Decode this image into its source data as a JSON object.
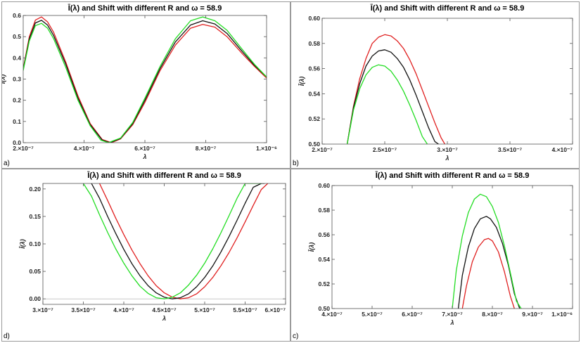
{
  "charts": [
    {
      "panel_id": "pa",
      "label": "a)",
      "chart_data": {
        "type": "line",
        "title": "Ī(λ) and Shift with different R and ω = 58.9",
        "xlabel": "λ",
        "ylabel": "Ī(λ)",
        "xlim": [
          2e-07,
          1e-06
        ],
        "ylim": [
          0,
          0.6
        ],
        "x_ticks": [
          {
            "v": 2e-07,
            "label": "2.×10⁻⁷"
          },
          {
            "v": 4e-07,
            "label": "4.×10⁻⁷"
          },
          {
            "v": 6e-07,
            "label": "6.×10⁻⁷"
          },
          {
            "v": 8e-07,
            "label": "8.×10⁻⁷"
          },
          {
            "v": 1e-06,
            "label": "1.×10⁻⁶"
          }
        ],
        "y_ticks": [
          {
            "v": 0.0,
            "label": "0.0"
          },
          {
            "v": 0.1,
            "label": "0.1"
          },
          {
            "v": 0.2,
            "label": "0.2"
          },
          {
            "v": 0.3,
            "label": "0.3"
          },
          {
            "v": 0.4,
            "label": "0.4"
          },
          {
            "v": 0.5,
            "label": "0.5"
          },
          {
            "v": 0.6,
            "label": "0.6"
          }
        ],
        "series": [
          {
            "name": "red",
            "color": "#e02020",
            "x": [
              2e-07,
              2.2e-07,
              2.4e-07,
              2.6e-07,
              2.8e-07,
              3e-07,
              3.4e-07,
              3.8e-07,
              4.2e-07,
              4.6e-07,
              4.9e-07,
              5.2e-07,
              5.6e-07,
              6e-07,
              6.5e-07,
              7e-07,
              7.5e-07,
              7.9e-07,
              8.3e-07,
              8.7e-07,
              9.2e-07,
              9.6e-07,
              1e-06
            ],
            "y": [
              0.35,
              0.5,
              0.578,
              0.593,
              0.57,
              0.52,
              0.38,
              0.22,
              0.09,
              0.015,
              0.0,
              0.018,
              0.085,
              0.19,
              0.34,
              0.46,
              0.54,
              0.558,
              0.545,
              0.5,
              0.42,
              0.36,
              0.305
            ]
          },
          {
            "name": "black",
            "color": "#111111",
            "x": [
              2e-07,
              2.2e-07,
              2.4e-07,
              2.6e-07,
              2.8e-07,
              3e-07,
              3.4e-07,
              3.8e-07,
              4.2e-07,
              4.6e-07,
              4.85e-07,
              5.2e-07,
              5.6e-07,
              6e-07,
              6.5e-07,
              7e-07,
              7.5e-07,
              7.9e-07,
              8.3e-07,
              8.7e-07,
              9.2e-07,
              9.6e-07,
              1e-06
            ],
            "y": [
              0.345,
              0.49,
              0.565,
              0.577,
              0.555,
              0.505,
              0.37,
              0.21,
              0.085,
              0.012,
              0.0,
              0.02,
              0.09,
              0.2,
              0.35,
              0.475,
              0.555,
              0.575,
              0.56,
              0.515,
              0.43,
              0.365,
              0.31
            ]
          },
          {
            "name": "green",
            "color": "#22dd22",
            "x": [
              2e-07,
              2.2e-07,
              2.4e-07,
              2.6e-07,
              2.8e-07,
              3e-07,
              3.4e-07,
              3.8e-07,
              4.2e-07,
              4.55e-07,
              4.8e-07,
              5.2e-07,
              5.6e-07,
              6e-07,
              6.5e-07,
              7e-07,
              7.5e-07,
              7.9e-07,
              8.3e-07,
              8.7e-07,
              9.2e-07,
              9.6e-07,
              1e-06
            ],
            "y": [
              0.34,
              0.48,
              0.552,
              0.563,
              0.54,
              0.49,
              0.355,
              0.2,
              0.08,
              0.012,
              0.0,
              0.022,
              0.095,
              0.21,
              0.36,
              0.49,
              0.575,
              0.593,
              0.575,
              0.53,
              0.44,
              0.37,
              0.31
            ]
          }
        ]
      }
    },
    {
      "panel_id": "pb",
      "label": "b)",
      "chart_data": {
        "type": "line",
        "title": "Ī(λ) and Shift with different R and ω = 58.9",
        "xlabel": "λ",
        "ylabel": "Ī(λ)",
        "xlim": [
          2e-07,
          4e-07
        ],
        "ylim": [
          0.5,
          0.6
        ],
        "x_ticks": [
          {
            "v": 2e-07,
            "label": "2.×10⁻⁷"
          },
          {
            "v": 2.5e-07,
            "label": "2.5×10⁻⁷"
          },
          {
            "v": 3e-07,
            "label": "3.×10⁻⁷"
          },
          {
            "v": 3.5e-07,
            "label": "3.5×10⁻⁷"
          },
          {
            "v": 4e-07,
            "label": "4.×10⁻⁷"
          }
        ],
        "y_ticks": [
          {
            "v": 0.5,
            "label": "0.50"
          },
          {
            "v": 0.52,
            "label": "0.52"
          },
          {
            "v": 0.54,
            "label": "0.54"
          },
          {
            "v": 0.56,
            "label": "0.56"
          },
          {
            "v": 0.58,
            "label": "0.58"
          },
          {
            "v": 0.6,
            "label": "0.60"
          }
        ],
        "series": [
          {
            "name": "red",
            "color": "#e02020",
            "x": [
              2.2e-07,
              2.25e-07,
              2.3e-07,
              2.35e-07,
              2.4e-07,
              2.45e-07,
              2.5e-07,
              2.55e-07,
              2.6e-07,
              2.65e-07,
              2.7e-07,
              2.75e-07,
              2.8e-07,
              2.85e-07,
              2.9e-07,
              2.95e-07,
              2.98e-07
            ],
            "y": [
              0.5,
              0.53,
              0.552,
              0.568,
              0.58,
              0.585,
              0.587,
              0.586,
              0.582,
              0.576,
              0.567,
              0.556,
              0.543,
              0.53,
              0.517,
              0.505,
              0.5
            ]
          },
          {
            "name": "black",
            "color": "#111111",
            "x": [
              2.2e-07,
              2.25e-07,
              2.3e-07,
              2.35e-07,
              2.4e-07,
              2.45e-07,
              2.5e-07,
              2.55e-07,
              2.6e-07,
              2.65e-07,
              2.7e-07,
              2.75e-07,
              2.8e-07,
              2.85e-07,
              2.9e-07,
              2.93e-07
            ],
            "y": [
              0.5,
              0.529,
              0.548,
              0.562,
              0.57,
              0.574,
              0.575,
              0.573,
              0.568,
              0.561,
              0.551,
              0.539,
              0.526,
              0.513,
              0.502,
              0.5
            ]
          },
          {
            "name": "green",
            "color": "#22dd22",
            "x": [
              2.2e-07,
              2.25e-07,
              2.3e-07,
              2.35e-07,
              2.4e-07,
              2.45e-07,
              2.5e-07,
              2.55e-07,
              2.6e-07,
              2.65e-07,
              2.7e-07,
              2.75e-07,
              2.8e-07,
              2.84e-07
            ],
            "y": [
              0.5,
              0.527,
              0.544,
              0.555,
              0.561,
              0.563,
              0.562,
              0.558,
              0.551,
              0.542,
              0.531,
              0.519,
              0.506,
              0.5
            ]
          }
        ]
      }
    },
    {
      "panel_id": "pd",
      "label": "d)",
      "chart_data": {
        "type": "line",
        "title": "Ī(λ) and Shift with different R and ω = 58.9",
        "xlabel": "λ",
        "ylabel": "Ī(λ)",
        "xlim": [
          3e-07,
          6e-07
        ],
        "ylim": [
          -0.01,
          0.21
        ],
        "x_ticks": [
          {
            "v": 3e-07,
            "label": "3.×10⁻⁷"
          },
          {
            "v": 3.5e-07,
            "label": "3.5×10⁻⁷"
          },
          {
            "v": 4e-07,
            "label": "4.×10⁻⁷"
          },
          {
            "v": 4.5e-07,
            "label": "4.5×10⁻⁷"
          },
          {
            "v": 5e-07,
            "label": "5.×10⁻⁷"
          },
          {
            "v": 5.5e-07,
            "label": "5.5×10⁻⁷"
          },
          {
            "v": 6e-07,
            "label": "6.×10⁻⁷"
          }
        ],
        "y_ticks": [
          {
            "v": 0.0,
            "label": "0.00"
          },
          {
            "v": 0.05,
            "label": "0.05"
          },
          {
            "v": 0.1,
            "label": "0.10"
          },
          {
            "v": 0.15,
            "label": "0.15"
          },
          {
            "v": 0.2,
            "label": "0.20"
          }
        ],
        "series": [
          {
            "name": "red",
            "color": "#e02020",
            "x": [
              3.7e-07,
              3.8e-07,
              3.9e-07,
              4e-07,
              4.1e-07,
              4.2e-07,
              4.3e-07,
              4.4e-07,
              4.5e-07,
              4.6e-07,
              4.7e-07,
              4.8e-07,
              4.9e-07,
              5e-07,
              5.1e-07,
              5.2e-07,
              5.3e-07,
              5.4e-07,
              5.5e-07,
              5.6e-07,
              5.7e-07,
              5.78e-07
            ],
            "y": [
              0.21,
              0.179,
              0.147,
              0.117,
              0.089,
              0.064,
              0.042,
              0.024,
              0.011,
              0.003,
              0.0,
              0.002,
              0.009,
              0.022,
              0.039,
              0.06,
              0.084,
              0.111,
              0.14,
              0.17,
              0.199,
              0.21
            ]
          },
          {
            "name": "black",
            "color": "#111111",
            "x": [
              3.6e-07,
              3.7e-07,
              3.8e-07,
              3.9e-07,
              4e-07,
              4.1e-07,
              4.2e-07,
              4.3e-07,
              4.4e-07,
              4.5e-07,
              4.6e-07,
              4.7e-07,
              4.8e-07,
              4.9e-07,
              5e-07,
              5.1e-07,
              5.2e-07,
              5.3e-07,
              5.4e-07,
              5.5e-07,
              5.6e-07,
              5.7e-07,
              5.74e-07
            ],
            "y": [
              0.21,
              0.183,
              0.15,
              0.119,
              0.09,
              0.064,
              0.042,
              0.024,
              0.011,
              0.003,
              0.0,
              0.002,
              0.009,
              0.022,
              0.039,
              0.06,
              0.085,
              0.113,
              0.143,
              0.174,
              0.203,
              0.21,
              0.21
            ]
          },
          {
            "name": "green",
            "color": "#22dd22",
            "x": [
              3.5e-07,
              3.6e-07,
              3.7e-07,
              3.8e-07,
              3.9e-07,
              4e-07,
              4.1e-07,
              4.2e-07,
              4.3e-07,
              4.4e-07,
              4.5e-07,
              4.6e-07,
              4.7e-07,
              4.8e-07,
              4.9e-07,
              5e-07,
              5.1e-07,
              5.2e-07,
              5.3e-07,
              5.4e-07,
              5.5e-07,
              5.6e-07,
              5.7e-07
            ],
            "y": [
              0.21,
              0.187,
              0.153,
              0.121,
              0.091,
              0.065,
              0.042,
              0.023,
              0.01,
              0.002,
              0.0,
              0.003,
              0.011,
              0.025,
              0.043,
              0.065,
              0.091,
              0.12,
              0.151,
              0.183,
              0.21,
              0.21,
              0.21
            ]
          }
        ]
      }
    },
    {
      "panel_id": "pc",
      "label": "c)",
      "chart_data": {
        "type": "line",
        "title": "Ī(λ) and Shift with different R and ω = 58.9",
        "xlabel": "λ",
        "ylabel": "Ī(λ)",
        "xlim": [
          4e-07,
          1e-06
        ],
        "ylim": [
          0.5,
          0.6
        ],
        "x_ticks": [
          {
            "v": 4e-07,
            "label": "4.×10⁻⁷"
          },
          {
            "v": 5e-07,
            "label": "5.×10⁻⁷"
          },
          {
            "v": 6e-07,
            "label": "6.×10⁻⁷"
          },
          {
            "v": 7e-07,
            "label": "7.×10⁻⁷"
          },
          {
            "v": 8e-07,
            "label": "8.×10⁻⁷"
          },
          {
            "v": 9e-07,
            "label": "9.×10⁻⁷"
          },
          {
            "v": 1e-06,
            "label": "1.×10⁻⁶"
          }
        ],
        "y_ticks": [
          {
            "v": 0.5,
            "label": "0.50"
          },
          {
            "v": 0.52,
            "label": "0.52"
          },
          {
            "v": 0.54,
            "label": "0.54"
          },
          {
            "v": 0.56,
            "label": "0.56"
          },
          {
            "v": 0.58,
            "label": "0.58"
          },
          {
            "v": 0.6,
            "label": "0.60"
          }
        ],
        "series": [
          {
            "name": "red",
            "color": "#e02020",
            "x": [
              7.25e-07,
              7.35e-07,
              7.5e-07,
              7.65e-07,
              7.8e-07,
              7.9e-07,
              8e-07,
              8.15e-07,
              8.3e-07,
              8.45e-07,
              8.55e-07
            ],
            "y": [
              0.5,
              0.518,
              0.538,
              0.55,
              0.556,
              0.557,
              0.555,
              0.546,
              0.53,
              0.51,
              0.5
            ]
          },
          {
            "name": "black",
            "color": "#111111",
            "x": [
              7.15e-07,
              7.25e-07,
              7.4e-07,
              7.55e-07,
              7.7e-07,
              7.85e-07,
              7.95e-07,
              8.1e-07,
              8.25e-07,
              8.4e-07,
              8.55e-07,
              8.68e-07
            ],
            "y": [
              0.5,
              0.527,
              0.55,
              0.565,
              0.573,
              0.575,
              0.573,
              0.566,
              0.553,
              0.535,
              0.512,
              0.5
            ]
          },
          {
            "name": "green",
            "color": "#22dd22",
            "x": [
              7e-07,
              7.1e-07,
              7.25e-07,
              7.4e-07,
              7.55e-07,
              7.7e-07,
              7.85e-07,
              8e-07,
              8.15e-07,
              8.3e-07,
              8.45e-07,
              8.6e-07,
              8.72e-07
            ],
            "y": [
              0.5,
              0.531,
              0.559,
              0.578,
              0.589,
              0.593,
              0.591,
              0.583,
              0.57,
              0.551,
              0.529,
              0.506,
              0.5
            ]
          }
        ]
      }
    }
  ]
}
